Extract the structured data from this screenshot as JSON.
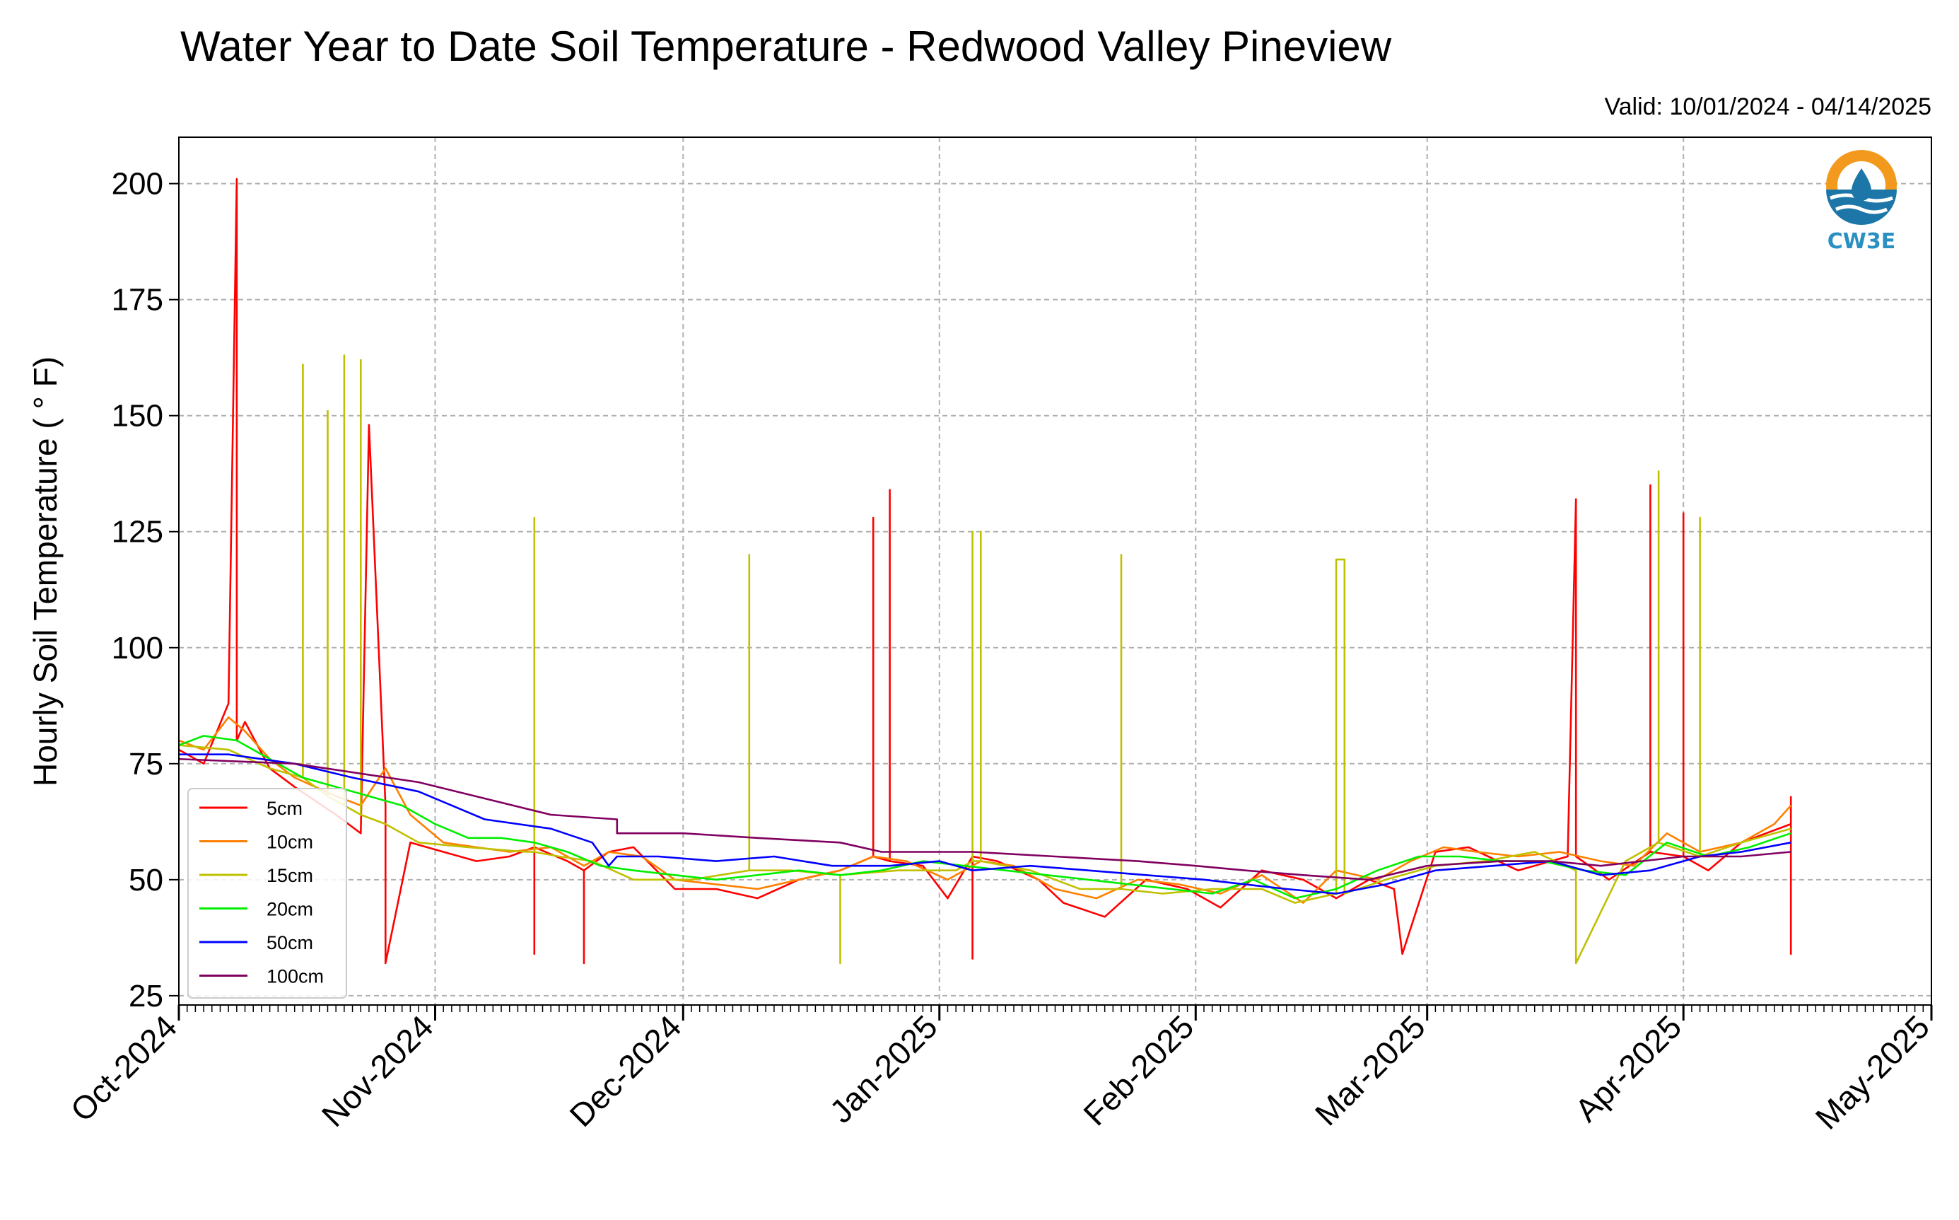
{
  "chart_data": {
    "type": "line",
    "title": "Water Year to Date Soil Temperature - Redwood Valley Pineview",
    "subtitle": "Valid: 10/01/2024 - 04/14/2025",
    "ylabel": "Hourly Soil Temperature ( ° F)",
    "xlabel": "",
    "ylim": [
      23,
      210
    ],
    "xlim": [
      "2024-10-01",
      "2025-05-01"
    ],
    "y_ticks": [
      25,
      50,
      75,
      100,
      125,
      150,
      175,
      200
    ],
    "y_tick_labels": [
      "25",
      "50",
      "75",
      "100",
      "125",
      "150",
      "175",
      "200"
    ],
    "x_ticks": [
      "2024-10-01",
      "2024-11-01",
      "2024-12-01",
      "2025-01-01",
      "2025-02-01",
      "2025-03-01",
      "2025-04-01",
      "2025-05-01"
    ],
    "x_tick_labels": [
      "Oct-2024",
      "Nov-2024",
      "Dec-2024",
      "Jan-2025",
      "Feb-2025",
      "Mar-2025",
      "Apr-2025",
      "May-2025"
    ],
    "grid": true,
    "legend_position": "lower-left",
    "logo_text": "CW3E",
    "series": [
      {
        "name": "5cm",
        "color": "#ff0000",
        "x": [
          "2024-10-01",
          "2024-10-04",
          "2024-10-07",
          "2024-10-08",
          "2024-10-08",
          "2024-10-08",
          "2024-10-09",
          "2024-10-12",
          "2024-10-15",
          "2024-10-20",
          "2024-10-23",
          "2024-10-24",
          "2024-10-24",
          "2024-10-26",
          "2024-10-26",
          "2024-10-26",
          "2024-10-29",
          "2024-11-02",
          "2024-11-06",
          "2024-11-10",
          "2024-11-13",
          "2024-11-13",
          "2024-11-13",
          "2024-11-17",
          "2024-11-19",
          "2024-11-19",
          "2024-11-19",
          "2024-11-22",
          "2024-11-25",
          "2024-11-30",
          "2024-12-05",
          "2024-12-10",
          "2024-12-15",
          "2024-12-20",
          "2024-12-24",
          "2024-12-24",
          "2024-12-24",
          "2024-12-26",
          "2024-12-26",
          "2024-12-26",
          "2024-12-30",
          "2025-01-02",
          "2025-01-05",
          "2025-01-05",
          "2025-01-05",
          "2025-01-08",
          "2025-01-13",
          "2025-01-16",
          "2025-01-21",
          "2025-01-26",
          "2025-01-31",
          "2025-02-04",
          "2025-02-09",
          "2025-02-14",
          "2025-02-18",
          "2025-02-22",
          "2025-02-25",
          "2025-02-26",
          "2025-03-02",
          "2025-03-06",
          "2025-03-12",
          "2025-03-18",
          "2025-03-19",
          "2025-03-19",
          "2025-03-19",
          "2025-03-23",
          "2025-03-28",
          "2025-03-28",
          "2025-03-28",
          "2025-04-01",
          "2025-04-01",
          "2025-04-01",
          "2025-04-04",
          "2025-04-08",
          "2025-04-14",
          "2025-04-14",
          "2025-04-14"
        ],
        "y": [
          78,
          75,
          88,
          201,
          201,
          80,
          84,
          74,
          70,
          64,
          60,
          148,
          148,
          66,
          60,
          32,
          58,
          56,
          54,
          55,
          57,
          34,
          57,
          54,
          52,
          32,
          52,
          56,
          57,
          48,
          48,
          46,
          50,
          52,
          55,
          128,
          55,
          54,
          134,
          54,
          53,
          46,
          55,
          33,
          55,
          54,
          50,
          45,
          42,
          50,
          48,
          44,
          52,
          50,
          46,
          50,
          48,
          34,
          56,
          57,
          52,
          55,
          132,
          132,
          55,
          50,
          56,
          135,
          56,
          55,
          129,
          55,
          52,
          58,
          62,
          34,
          68
        ]
      },
      {
        "name": "10cm",
        "color": "#ff8000",
        "x": [
          "2024-10-01",
          "2024-10-04",
          "2024-10-07",
          "2024-10-09",
          "2024-10-12",
          "2024-10-15",
          "2024-10-20",
          "2024-10-23",
          "2024-10-26",
          "2024-10-29",
          "2024-11-02",
          "2024-11-06",
          "2024-11-10",
          "2024-11-15",
          "2024-11-19",
          "2024-11-22",
          "2024-11-26",
          "2024-11-30",
          "2024-12-05",
          "2024-12-10",
          "2024-12-15",
          "2024-12-20",
          "2024-12-24",
          "2024-12-28",
          "2025-01-02",
          "2025-01-06",
          "2025-01-10",
          "2025-01-15",
          "2025-01-20",
          "2025-01-25",
          "2025-01-30",
          "2025-02-04",
          "2025-02-09",
          "2025-02-14",
          "2025-02-18",
          "2025-02-23",
          "2025-02-27",
          "2025-03-03",
          "2025-03-07",
          "2025-03-12",
          "2025-03-17",
          "2025-03-22",
          "2025-03-26",
          "2025-03-30",
          "2025-04-03",
          "2025-04-08",
          "2025-04-12",
          "2025-04-14"
        ],
        "y": [
          80,
          78,
          85,
          82,
          76,
          72,
          68,
          66,
          74,
          64,
          58,
          57,
          56,
          57,
          53,
          56,
          55,
          50,
          49,
          48,
          50,
          52,
          55,
          54,
          50,
          54,
          53,
          48,
          46,
          50,
          49,
          47,
          51,
          45,
          52,
          50,
          54,
          57,
          56,
          55,
          56,
          54,
          53,
          60,
          56,
          58,
          62,
          66
        ]
      },
      {
        "name": "15cm",
        "color": "#c0c000",
        "x": [
          "2024-10-01",
          "2024-10-07",
          "2024-10-12",
          "2024-10-16",
          "2024-10-16",
          "2024-10-16",
          "2024-10-19",
          "2024-10-19",
          "2024-10-19",
          "2024-10-21",
          "2024-10-21",
          "2024-10-21",
          "2024-10-23",
          "2024-10-23",
          "2024-10-23",
          "2024-10-26",
          "2024-10-30",
          "2024-11-05",
          "2024-11-12",
          "2024-11-13",
          "2024-11-13",
          "2024-11-13",
          "2024-11-16",
          "2024-11-20",
          "2024-11-25",
          "2024-12-02",
          "2024-12-09",
          "2024-12-09",
          "2024-12-09",
          "2024-12-14",
          "2024-12-20",
          "2024-12-20",
          "2024-12-20",
          "2024-12-27",
          "2025-01-03",
          "2025-01-05",
          "2025-01-05",
          "2025-01-05",
          "2025-01-06",
          "2025-01-06",
          "2025-01-06",
          "2025-01-12",
          "2025-01-18",
          "2025-01-23",
          "2025-01-23",
          "2025-01-23",
          "2025-01-28",
          "2025-02-03",
          "2025-02-09",
          "2025-02-13",
          "2025-02-18",
          "2025-02-18",
          "2025-02-19",
          "2025-02-19",
          "2025-02-24",
          "2025-03-02",
          "2025-03-08",
          "2025-03-14",
          "2025-03-19",
          "2025-03-19",
          "2025-03-25",
          "2025-03-29",
          "2025-03-29",
          "2025-03-29",
          "2025-04-03",
          "2025-04-03",
          "2025-04-03",
          "2025-04-08",
          "2025-04-14"
        ],
        "y": [
          79,
          78,
          74,
          72,
          161,
          72,
          68,
          151,
          68,
          66,
          163,
          66,
          64,
          162,
          64,
          62,
          58,
          57,
          56,
          56,
          128,
          56,
          55,
          54,
          50,
          50,
          52,
          120,
          52,
          52,
          51,
          32,
          51,
          52,
          52,
          54,
          125,
          54,
          54,
          125,
          54,
          52,
          48,
          48,
          120,
          48,
          47,
          48,
          48,
          45,
          47,
          119,
          119,
          47,
          50,
          53,
          54,
          56,
          52,
          32,
          54,
          58,
          138,
          58,
          55,
          128,
          55,
          58,
          61
        ]
      },
      {
        "name": "20cm",
        "color": "#00ee00",
        "x": [
          "2024-10-01",
          "2024-10-04",
          "2024-10-08",
          "2024-10-12",
          "2024-10-16",
          "2024-10-20",
          "2024-10-24",
          "2024-10-28",
          "2024-11-01",
          "2024-11-05",
          "2024-11-09",
          "2024-11-13",
          "2024-11-17",
          "2024-11-21",
          "2024-11-25",
          "2024-11-30",
          "2024-12-05",
          "2024-12-10",
          "2024-12-15",
          "2024-12-20",
          "2024-12-25",
          "2024-12-30",
          "2025-01-04",
          "2025-01-09",
          "2025-01-14",
          "2025-01-19",
          "2025-01-24",
          "2025-01-29",
          "2025-02-03",
          "2025-02-08",
          "2025-02-13",
          "2025-02-18",
          "2025-02-23",
          "2025-02-28",
          "2025-03-05",
          "2025-03-10",
          "2025-03-15",
          "2025-03-20",
          "2025-03-25",
          "2025-03-30",
          "2025-04-04",
          "2025-04-09",
          "2025-04-14"
        ],
        "y": [
          79,
          81,
          80,
          76,
          72,
          70,
          68,
          66,
          62,
          59,
          59,
          58,
          56,
          53,
          52,
          51,
          50,
          51,
          52,
          51,
          52,
          54,
          53,
          52,
          51,
          50,
          49,
          48,
          47,
          50,
          46,
          48,
          52,
          55,
          55,
          54,
          54,
          52,
          51,
          58,
          55,
          57,
          60
        ]
      },
      {
        "name": "50cm",
        "color": "#0000ff",
        "x": [
          "2024-10-01",
          "2024-10-07",
          "2024-10-15",
          "2024-10-22",
          "2024-10-30",
          "2024-11-07",
          "2024-11-15",
          "2024-11-20",
          "2024-11-22",
          "2024-11-23",
          "2024-11-28",
          "2024-12-05",
          "2024-12-12",
          "2024-12-19",
          "2024-12-26",
          "2025-01-01",
          "2025-01-05",
          "2025-01-12",
          "2025-01-19",
          "2025-01-26",
          "2025-02-02",
          "2025-02-07",
          "2025-02-12",
          "2025-02-18",
          "2025-02-24",
          "2025-03-02",
          "2025-03-09",
          "2025-03-16",
          "2025-03-22",
          "2025-03-28",
          "2025-04-03",
          "2025-04-08",
          "2025-04-14"
        ],
        "y": [
          77,
          77,
          75,
          72,
          69,
          63,
          61,
          58,
          53,
          55,
          55,
          54,
          55,
          53,
          53,
          54,
          52,
          53,
          52,
          51,
          50,
          49,
          48,
          47,
          49,
          52,
          53,
          54,
          51,
          52,
          55,
          56,
          58
        ]
      },
      {
        "name": "100cm",
        "color": "#800060",
        "x": [
          "2024-10-01",
          "2024-10-15",
          "2024-10-30",
          "2024-11-15",
          "2024-11-23",
          "2024-11-23",
          "2024-12-01",
          "2024-12-10",
          "2024-12-20",
          "2024-12-25",
          "2025-01-05",
          "2025-01-15",
          "2025-01-25",
          "2025-02-01",
          "2025-02-07",
          "2025-02-14",
          "2025-02-22",
          "2025-03-01",
          "2025-03-10",
          "2025-03-16",
          "2025-03-22",
          "2025-04-01",
          "2025-04-08",
          "2025-04-14"
        ],
        "y": [
          76,
          75,
          71,
          64,
          63,
          60,
          60,
          59,
          58,
          56,
          56,
          55,
          54,
          53,
          52,
          51,
          50,
          53,
          54,
          54,
          53,
          55,
          55,
          56
        ]
      }
    ]
  }
}
